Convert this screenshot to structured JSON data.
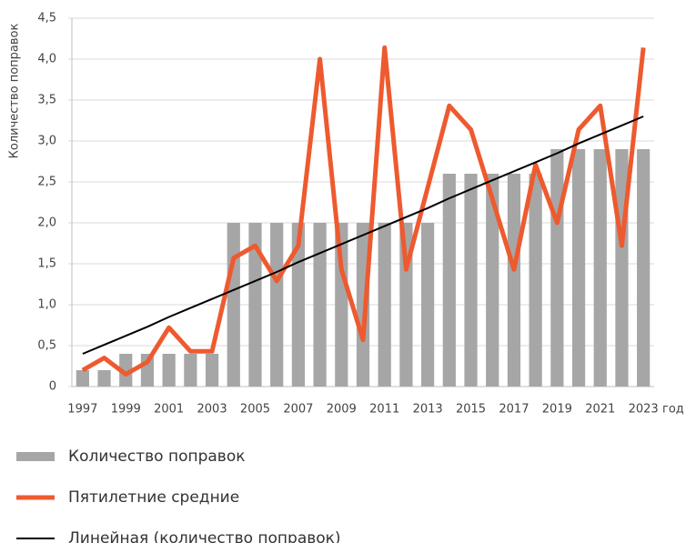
{
  "chart_data": {
    "type": "bar",
    "ylabel": "Количество поправок",
    "xlabel": "год",
    "categories": [
      "1997",
      null,
      "1999",
      null,
      "2001",
      null,
      "2003",
      null,
      "2005",
      null,
      "2007",
      null,
      "2009",
      null,
      "2011",
      null,
      "2013",
      null,
      "2015",
      null,
      "2017",
      null,
      "2019",
      null,
      "2021",
      null,
      "2023"
    ],
    "series": [
      {
        "name": "Количество поправок",
        "type": "bar",
        "color": "#a6a6a6",
        "values": [
          0.2,
          0.2,
          0.4,
          0.4,
          0.4,
          0.4,
          0.4,
          2.0,
          2.0,
          2.0,
          2.0,
          2.0,
          2.0,
          2.0,
          2.0,
          2.0,
          2.0,
          2.6,
          2.6,
          2.6,
          2.6,
          2.6,
          2.9,
          2.9,
          2.9,
          2.9,
          2.9
        ]
      },
      {
        "name": "Пятилетние средние",
        "type": "line",
        "color": "#ee5a2f",
        "values": [
          0.2,
          0.35,
          0.15,
          0.3,
          0.72,
          0.43,
          0.43,
          1.57,
          1.72,
          1.29,
          1.72,
          4.0,
          1.43,
          0.57,
          4.14,
          1.43,
          2.43,
          3.43,
          3.14,
          2.29,
          1.43,
          2.71,
          2.0,
          3.14,
          3.43,
          1.72,
          4.14
        ]
      },
      {
        "name": "Линейная (количество поправок)",
        "type": "trend",
        "color": "#000000",
        "values": [
          0.4,
          0.51,
          0.62,
          0.73,
          0.85,
          0.96,
          1.07,
          1.18,
          1.29,
          1.4,
          1.52,
          1.63,
          1.74,
          1.85,
          1.96,
          2.07,
          2.18,
          2.3,
          2.41,
          2.52,
          2.63,
          2.74,
          2.85,
          2.97,
          3.08,
          3.19,
          3.3
        ]
      }
    ],
    "ylim": [
      0,
      4.5
    ],
    "yticks": [
      0,
      {
        "value": 0.5,
        "label": "0,5"
      },
      {
        "value": 1.0,
        "label": "1,0"
      },
      {
        "value": 1.5,
        "label": "1,5"
      },
      {
        "value": 2.0,
        "label": "2,0"
      },
      {
        "value": 2.5,
        "label": "2,5"
      },
      {
        "value": 3.0,
        "label": "3,0"
      },
      {
        "value": 3.5,
        "label": "3,5"
      },
      {
        "value": 4.0,
        "label": "4,0"
      },
      {
        "value": 4.5,
        "label": "4,5"
      }
    ],
    "grid": true
  }
}
